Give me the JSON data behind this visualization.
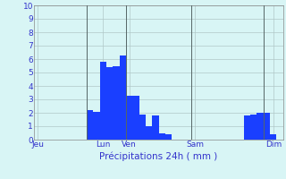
{
  "bar_values": [
    0,
    0,
    0,
    0,
    0,
    0,
    0,
    0,
    2.2,
    2.1,
    5.8,
    5.4,
    5.5,
    6.3,
    3.3,
    3.3,
    1.9,
    1.0,
    1.8,
    0.5,
    0.4,
    0,
    0,
    0,
    0,
    0,
    0,
    0,
    0,
    0,
    0,
    0,
    1.8,
    1.9,
    2.0,
    2.0,
    0.4,
    0
  ],
  "bar_color": "#1a3fff",
  "background_color": "#d8f5f5",
  "grid_color": "#b0c8c8",
  "axis_color": "#3333cc",
  "ylim": [
    0,
    10
  ],
  "yticks": [
    0,
    1,
    2,
    3,
    4,
    5,
    6,
    7,
    8,
    9,
    10
  ],
  "day_labels": [
    "Jeu",
    "Lun",
    "Ven",
    "Sam",
    "Dim"
  ],
  "day_tick_positions": [
    0.5,
    10.5,
    14.5,
    24.5,
    36.5
  ],
  "vline_positions": [
    8.0,
    14.0,
    24.0,
    35.0
  ],
  "xlabel": "Précipitations 24h ( mm )",
  "n_bars": 38,
  "figsize": [
    3.2,
    2.0
  ],
  "dpi": 100
}
